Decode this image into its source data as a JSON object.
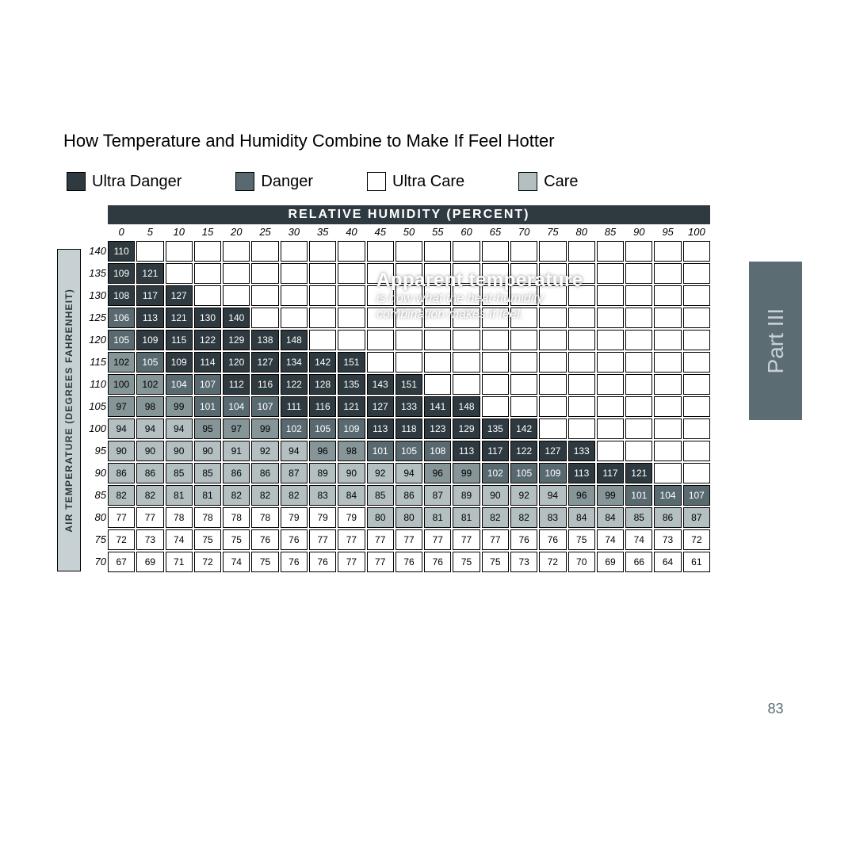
{
  "title": "How Temperature and Humidity Combine to Make If Feel Hotter",
  "legend": [
    {
      "label": "Ultra Danger",
      "color": "#2e3a40"
    },
    {
      "label": "Danger",
      "color": "#58696f"
    },
    {
      "label": "Ultra  Care",
      "color": "#ffffff"
    },
    {
      "label": "Care",
      "color": "#b4bfc2"
    }
  ],
  "x_axis_title": "RELATIVE HUMIDITY (PERCENT)",
  "y_axis_title": "AIR TEMPERATURE (DEGREES FAHRENHEIT)",
  "annotation": {
    "line1": "Apparent temperature",
    "line2": "is how what the heat-humidity",
    "line3": "combination makes it feel."
  },
  "side_tab": "Part III",
  "page_number": "83",
  "humidity_columns": [
    "0",
    "5",
    "10",
    "15",
    "20",
    "25",
    "30",
    "35",
    "40",
    "45",
    "50",
    "55",
    "60",
    "65",
    "70",
    "75",
    "80",
    "85",
    "90",
    "95",
    "100"
  ],
  "temperature_rows": [
    "140",
    "135",
    "130",
    "125",
    "120",
    "115",
    "110",
    "105",
    "100",
    "95",
    "90",
    "85",
    "80",
    "75",
    "70"
  ],
  "cells": [
    [
      {
        "v": "110",
        "c": 4
      }
    ],
    [
      {
        "v": "109",
        "c": 4
      },
      {
        "v": "121",
        "c": 4
      }
    ],
    [
      {
        "v": "108",
        "c": 4
      },
      {
        "v": "117",
        "c": 4
      },
      {
        "v": "127",
        "c": 4
      }
    ],
    [
      {
        "v": "106",
        "c": 3
      },
      {
        "v": "113",
        "c": 4
      },
      {
        "v": "121",
        "c": 4
      },
      {
        "v": "130",
        "c": 4
      },
      {
        "v": "140",
        "c": 4
      }
    ],
    [
      {
        "v": "105",
        "c": 3
      },
      {
        "v": "109",
        "c": 4
      },
      {
        "v": "115",
        "c": 4
      },
      {
        "v": "122",
        "c": 4
      },
      {
        "v": "129",
        "c": 4
      },
      {
        "v": "138",
        "c": 4
      },
      {
        "v": "148",
        "c": 4
      }
    ],
    [
      {
        "v": "102",
        "c": 2
      },
      {
        "v": "105",
        "c": 3
      },
      {
        "v": "109",
        "c": 4
      },
      {
        "v": "114",
        "c": 4
      },
      {
        "v": "120",
        "c": 4
      },
      {
        "v": "127",
        "c": 4
      },
      {
        "v": "134",
        "c": 4
      },
      {
        "v": "142",
        "c": 4
      },
      {
        "v": "151",
        "c": 4
      }
    ],
    [
      {
        "v": "100",
        "c": 2
      },
      {
        "v": "102",
        "c": 2
      },
      {
        "v": "104",
        "c": 3
      },
      {
        "v": "107",
        "c": 3
      },
      {
        "v": "112",
        "c": 4
      },
      {
        "v": "116",
        "c": 4
      },
      {
        "v": "122",
        "c": 4
      },
      {
        "v": "128",
        "c": 4
      },
      {
        "v": "135",
        "c": 4
      },
      {
        "v": "143",
        "c": 4
      },
      {
        "v": "151",
        "c": 4
      }
    ],
    [
      {
        "v": "97",
        "c": 2
      },
      {
        "v": "98",
        "c": 2
      },
      {
        "v": "99",
        "c": 2
      },
      {
        "v": "101",
        "c": 3
      },
      {
        "v": "104",
        "c": 3
      },
      {
        "v": "107",
        "c": 3
      },
      {
        "v": "111",
        "c": 4
      },
      {
        "v": "116",
        "c": 4
      },
      {
        "v": "121",
        "c": 4
      },
      {
        "v": "127",
        "c": 4
      },
      {
        "v": "133",
        "c": 4
      },
      {
        "v": "141",
        "c": 4
      },
      {
        "v": "148",
        "c": 4
      }
    ],
    [
      {
        "v": "94",
        "c": 1
      },
      {
        "v": "94",
        "c": 1
      },
      {
        "v": "94",
        "c": 1
      },
      {
        "v": "95",
        "c": 2
      },
      {
        "v": "97",
        "c": 2
      },
      {
        "v": "99",
        "c": 2
      },
      {
        "v": "102",
        "c": 3
      },
      {
        "v": "105",
        "c": 3
      },
      {
        "v": "109",
        "c": 3
      },
      {
        "v": "113",
        "c": 4
      },
      {
        "v": "118",
        "c": 4
      },
      {
        "v": "123",
        "c": 4
      },
      {
        "v": "129",
        "c": 4
      },
      {
        "v": "135",
        "c": 4
      },
      {
        "v": "142",
        "c": 4
      }
    ],
    [
      {
        "v": "90",
        "c": 1
      },
      {
        "v": "90",
        "c": 1
      },
      {
        "v": "90",
        "c": 1
      },
      {
        "v": "90",
        "c": 1
      },
      {
        "v": "91",
        "c": 1
      },
      {
        "v": "92",
        "c": 1
      },
      {
        "v": "94",
        "c": 1
      },
      {
        "v": "96",
        "c": 2
      },
      {
        "v": "98",
        "c": 2
      },
      {
        "v": "101",
        "c": 3
      },
      {
        "v": "105",
        "c": 3
      },
      {
        "v": "108",
        "c": 3
      },
      {
        "v": "113",
        "c": 4
      },
      {
        "v": "117",
        "c": 4
      },
      {
        "v": "122",
        "c": 4
      },
      {
        "v": "127",
        "c": 4
      },
      {
        "v": "133",
        "c": 4
      }
    ],
    [
      {
        "v": "86",
        "c": 1
      },
      {
        "v": "86",
        "c": 1
      },
      {
        "v": "85",
        "c": 1
      },
      {
        "v": "85",
        "c": 1
      },
      {
        "v": "86",
        "c": 1
      },
      {
        "v": "86",
        "c": 1
      },
      {
        "v": "87",
        "c": 1
      },
      {
        "v": "89",
        "c": 1
      },
      {
        "v": "90",
        "c": 1
      },
      {
        "v": "92",
        "c": 1
      },
      {
        "v": "94",
        "c": 1
      },
      {
        "v": "96",
        "c": 2
      },
      {
        "v": "99",
        "c": 2
      },
      {
        "v": "102",
        "c": 3
      },
      {
        "v": "105",
        "c": 3
      },
      {
        "v": "109",
        "c": 3
      },
      {
        "v": "113",
        "c": 4
      },
      {
        "v": "117",
        "c": 4
      },
      {
        "v": "121",
        "c": 4
      }
    ],
    [
      {
        "v": "82",
        "c": 1
      },
      {
        "v": "82",
        "c": 1
      },
      {
        "v": "81",
        "c": 1
      },
      {
        "v": "81",
        "c": 1
      },
      {
        "v": "82",
        "c": 1
      },
      {
        "v": "82",
        "c": 1
      },
      {
        "v": "82",
        "c": 1
      },
      {
        "v": "83",
        "c": 1
      },
      {
        "v": "84",
        "c": 1
      },
      {
        "v": "85",
        "c": 1
      },
      {
        "v": "86",
        "c": 1
      },
      {
        "v": "87",
        "c": 1
      },
      {
        "v": "89",
        "c": 1
      },
      {
        "v": "90",
        "c": 1
      },
      {
        "v": "92",
        "c": 1
      },
      {
        "v": "94",
        "c": 1
      },
      {
        "v": "96",
        "c": 2
      },
      {
        "v": "99",
        "c": 2
      },
      {
        "v": "101",
        "c": 3
      },
      {
        "v": "104",
        "c": 3
      },
      {
        "v": "107",
        "c": 3
      }
    ],
    [
      {
        "v": "77",
        "c": 0
      },
      {
        "v": "77",
        "c": 0
      },
      {
        "v": "78",
        "c": 0
      },
      {
        "v": "78",
        "c": 0
      },
      {
        "v": "78",
        "c": 0
      },
      {
        "v": "78",
        "c": 0
      },
      {
        "v": "79",
        "c": 0
      },
      {
        "v": "79",
        "c": 0
      },
      {
        "v": "79",
        "c": 0
      },
      {
        "v": "80",
        "c": 1
      },
      {
        "v": "80",
        "c": 1
      },
      {
        "v": "81",
        "c": 1
      },
      {
        "v": "81",
        "c": 1
      },
      {
        "v": "82",
        "c": 1
      },
      {
        "v": "82",
        "c": 1
      },
      {
        "v": "83",
        "c": 1
      },
      {
        "v": "84",
        "c": 1
      },
      {
        "v": "84",
        "c": 1
      },
      {
        "v": "85",
        "c": 1
      },
      {
        "v": "86",
        "c": 1
      },
      {
        "v": "87",
        "c": 1
      }
    ],
    [
      {
        "v": "72",
        "c": 0
      },
      {
        "v": "73",
        "c": 0
      },
      {
        "v": "74",
        "c": 0
      },
      {
        "v": "75",
        "c": 0
      },
      {
        "v": "75",
        "c": 0
      },
      {
        "v": "76",
        "c": 0
      },
      {
        "v": "76",
        "c": 0
      },
      {
        "v": "77",
        "c": 0
      },
      {
        "v": "77",
        "c": 0
      },
      {
        "v": "77",
        "c": 0
      },
      {
        "v": "77",
        "c": 0
      },
      {
        "v": "77",
        "c": 0
      },
      {
        "v": "77",
        "c": 0
      },
      {
        "v": "77",
        "c": 0
      },
      {
        "v": "76",
        "c": 0
      },
      {
        "v": "76",
        "c": 0
      },
      {
        "v": "75",
        "c": 0
      },
      {
        "v": "74",
        "c": 0
      },
      {
        "v": "74",
        "c": 0
      },
      {
        "v": "73",
        "c": 0
      },
      {
        "v": "72",
        "c": 0
      }
    ],
    [
      {
        "v": "67",
        "c": 0
      },
      {
        "v": "69",
        "c": 0
      },
      {
        "v": "71",
        "c": 0
      },
      {
        "v": "72",
        "c": 0
      },
      {
        "v": "74",
        "c": 0
      },
      {
        "v": "75",
        "c": 0
      },
      {
        "v": "76",
        "c": 0
      },
      {
        "v": "76",
        "c": 0
      },
      {
        "v": "77",
        "c": 0
      },
      {
        "v": "77",
        "c": 0
      },
      {
        "v": "76",
        "c": 0
      },
      {
        "v": "76",
        "c": 0
      },
      {
        "v": "75",
        "c": 0
      },
      {
        "v": "75",
        "c": 0
      },
      {
        "v": "73",
        "c": 0
      },
      {
        "v": "72",
        "c": 0
      },
      {
        "v": "70",
        "c": 0
      },
      {
        "v": "69",
        "c": 0
      },
      {
        "v": "66",
        "c": 0
      },
      {
        "v": "64",
        "c": 0
      },
      {
        "v": "61",
        "c": 0
      }
    ]
  ]
}
